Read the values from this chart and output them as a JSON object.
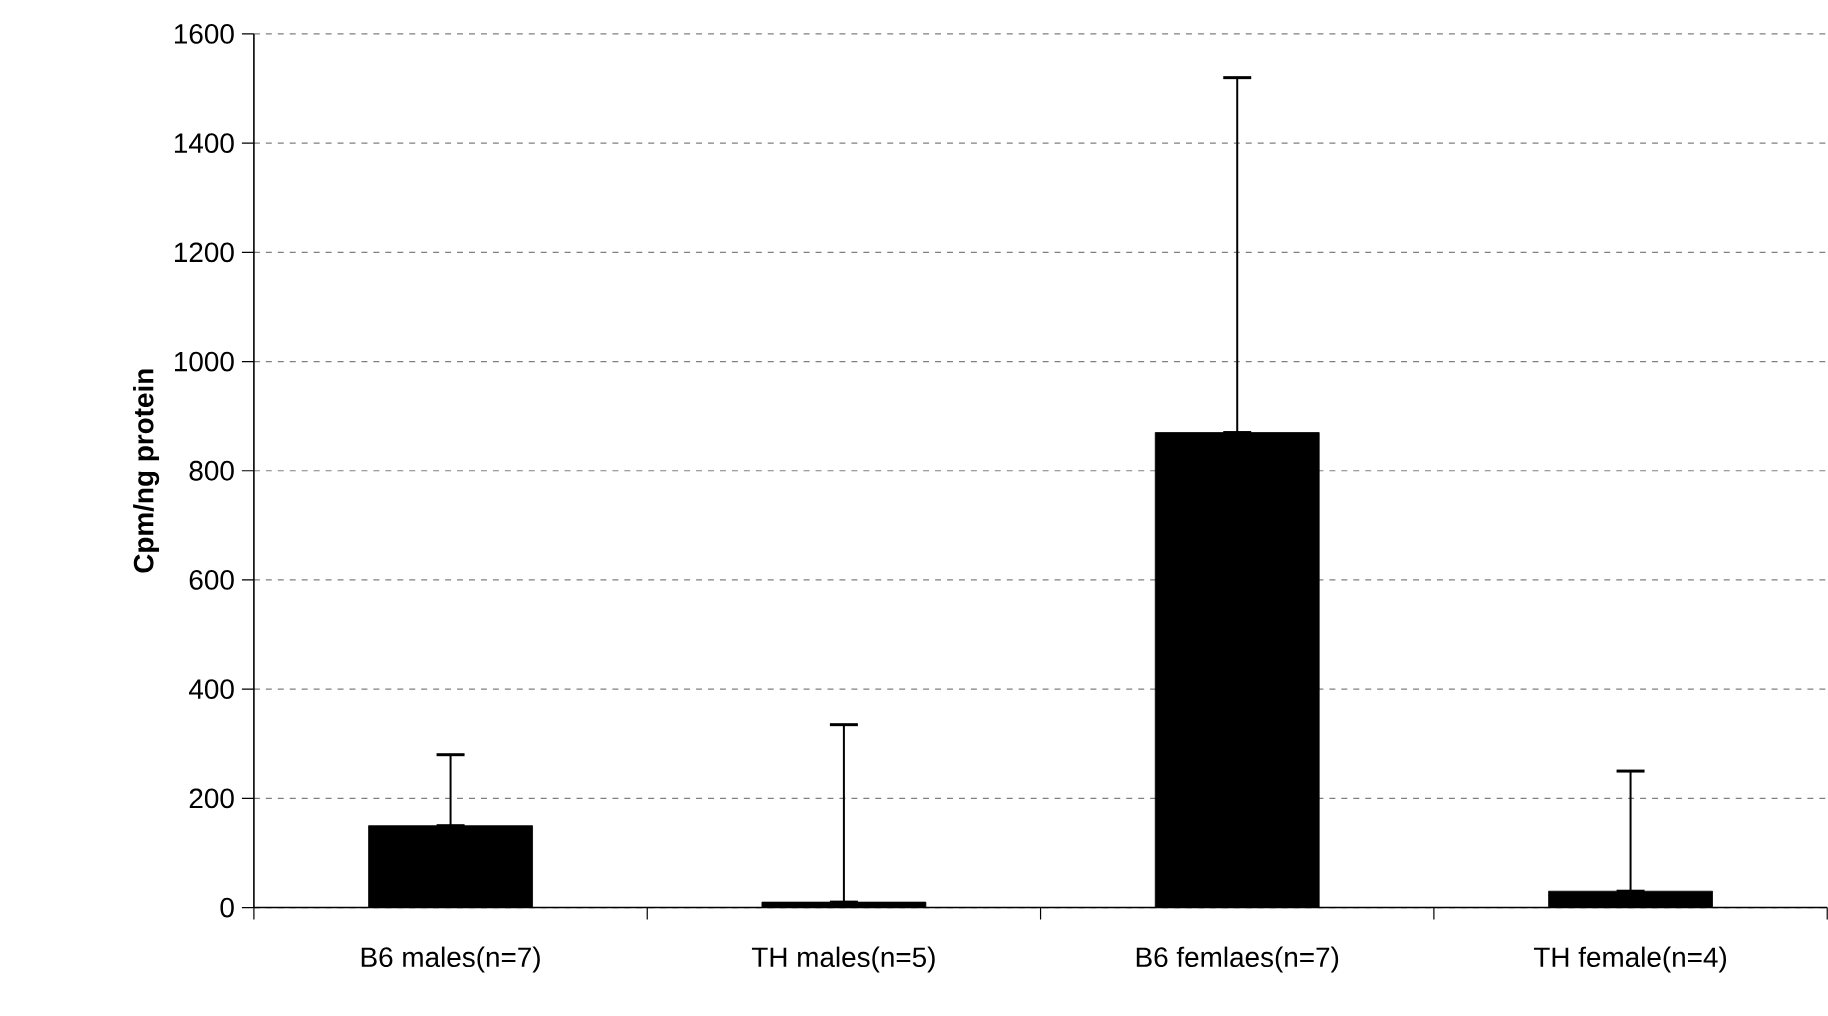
{
  "chart_data": {
    "type": "bar",
    "ylabel": "Cpm/ng protein",
    "categories": [
      "B6 males(n=7)",
      "TH males(n=5)",
      "B6 femlaes(n=7)",
      "TH female(n=4)"
    ],
    "values": [
      150,
      10,
      870,
      30
    ],
    "color": "#000000",
    "errors": [
      [
        150,
        280
      ],
      [
        10,
        335
      ],
      [
        870,
        1520
      ],
      [
        30,
        250
      ]
    ],
    "ylim": [
      0,
      1600
    ],
    "yticks": [
      0,
      200,
      400,
      600,
      800,
      1000,
      1200,
      1400,
      1600
    ],
    "grid": "y"
  }
}
